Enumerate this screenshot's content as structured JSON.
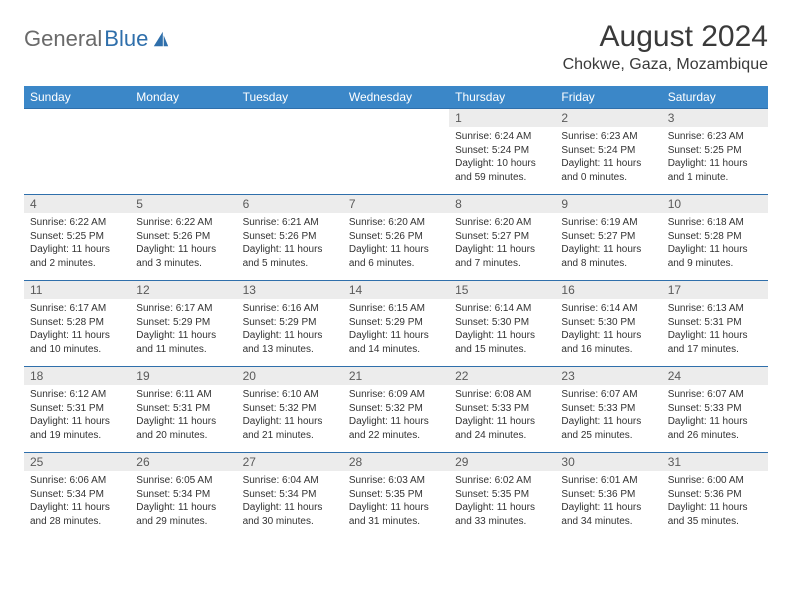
{
  "branding": {
    "logo_text_1": "General",
    "logo_text_2": "Blue",
    "logo_fill": "#2f6fab"
  },
  "header": {
    "month_title": "August 2024",
    "location": "Chokwe, Gaza, Mozambique"
  },
  "colors": {
    "header_bg": "#3b87c8",
    "header_text": "#ffffff",
    "row_border": "#2f6fab",
    "daynum_bg": "#ececec",
    "text": "#333333"
  },
  "days_of_week": [
    "Sunday",
    "Monday",
    "Tuesday",
    "Wednesday",
    "Thursday",
    "Friday",
    "Saturday"
  ],
  "labels": {
    "sunrise": "Sunrise: ",
    "sunset": "Sunset: ",
    "daylight": "Daylight: "
  },
  "weeks": [
    [
      {
        "empty": true
      },
      {
        "empty": true
      },
      {
        "empty": true
      },
      {
        "empty": true
      },
      {
        "day": "1",
        "sunrise": "6:24 AM",
        "sunset": "5:24 PM",
        "daylight": "10 hours and 59 minutes."
      },
      {
        "day": "2",
        "sunrise": "6:23 AM",
        "sunset": "5:24 PM",
        "daylight": "11 hours and 0 minutes."
      },
      {
        "day": "3",
        "sunrise": "6:23 AM",
        "sunset": "5:25 PM",
        "daylight": "11 hours and 1 minute."
      }
    ],
    [
      {
        "day": "4",
        "sunrise": "6:22 AM",
        "sunset": "5:25 PM",
        "daylight": "11 hours and 2 minutes."
      },
      {
        "day": "5",
        "sunrise": "6:22 AM",
        "sunset": "5:26 PM",
        "daylight": "11 hours and 3 minutes."
      },
      {
        "day": "6",
        "sunrise": "6:21 AM",
        "sunset": "5:26 PM",
        "daylight": "11 hours and 5 minutes."
      },
      {
        "day": "7",
        "sunrise": "6:20 AM",
        "sunset": "5:26 PM",
        "daylight": "11 hours and 6 minutes."
      },
      {
        "day": "8",
        "sunrise": "6:20 AM",
        "sunset": "5:27 PM",
        "daylight": "11 hours and 7 minutes."
      },
      {
        "day": "9",
        "sunrise": "6:19 AM",
        "sunset": "5:27 PM",
        "daylight": "11 hours and 8 minutes."
      },
      {
        "day": "10",
        "sunrise": "6:18 AM",
        "sunset": "5:28 PM",
        "daylight": "11 hours and 9 minutes."
      }
    ],
    [
      {
        "day": "11",
        "sunrise": "6:17 AM",
        "sunset": "5:28 PM",
        "daylight": "11 hours and 10 minutes."
      },
      {
        "day": "12",
        "sunrise": "6:17 AM",
        "sunset": "5:29 PM",
        "daylight": "11 hours and 11 minutes."
      },
      {
        "day": "13",
        "sunrise": "6:16 AM",
        "sunset": "5:29 PM",
        "daylight": "11 hours and 13 minutes."
      },
      {
        "day": "14",
        "sunrise": "6:15 AM",
        "sunset": "5:29 PM",
        "daylight": "11 hours and 14 minutes."
      },
      {
        "day": "15",
        "sunrise": "6:14 AM",
        "sunset": "5:30 PM",
        "daylight": "11 hours and 15 minutes."
      },
      {
        "day": "16",
        "sunrise": "6:14 AM",
        "sunset": "5:30 PM",
        "daylight": "11 hours and 16 minutes."
      },
      {
        "day": "17",
        "sunrise": "6:13 AM",
        "sunset": "5:31 PM",
        "daylight": "11 hours and 17 minutes."
      }
    ],
    [
      {
        "day": "18",
        "sunrise": "6:12 AM",
        "sunset": "5:31 PM",
        "daylight": "11 hours and 19 minutes."
      },
      {
        "day": "19",
        "sunrise": "6:11 AM",
        "sunset": "5:31 PM",
        "daylight": "11 hours and 20 minutes."
      },
      {
        "day": "20",
        "sunrise": "6:10 AM",
        "sunset": "5:32 PM",
        "daylight": "11 hours and 21 minutes."
      },
      {
        "day": "21",
        "sunrise": "6:09 AM",
        "sunset": "5:32 PM",
        "daylight": "11 hours and 22 minutes."
      },
      {
        "day": "22",
        "sunrise": "6:08 AM",
        "sunset": "5:33 PM",
        "daylight": "11 hours and 24 minutes."
      },
      {
        "day": "23",
        "sunrise": "6:07 AM",
        "sunset": "5:33 PM",
        "daylight": "11 hours and 25 minutes."
      },
      {
        "day": "24",
        "sunrise": "6:07 AM",
        "sunset": "5:33 PM",
        "daylight": "11 hours and 26 minutes."
      }
    ],
    [
      {
        "day": "25",
        "sunrise": "6:06 AM",
        "sunset": "5:34 PM",
        "daylight": "11 hours and 28 minutes."
      },
      {
        "day": "26",
        "sunrise": "6:05 AM",
        "sunset": "5:34 PM",
        "daylight": "11 hours and 29 minutes."
      },
      {
        "day": "27",
        "sunrise": "6:04 AM",
        "sunset": "5:34 PM",
        "daylight": "11 hours and 30 minutes."
      },
      {
        "day": "28",
        "sunrise": "6:03 AM",
        "sunset": "5:35 PM",
        "daylight": "11 hours and 31 minutes."
      },
      {
        "day": "29",
        "sunrise": "6:02 AM",
        "sunset": "5:35 PM",
        "daylight": "11 hours and 33 minutes."
      },
      {
        "day": "30",
        "sunrise": "6:01 AM",
        "sunset": "5:36 PM",
        "daylight": "11 hours and 34 minutes."
      },
      {
        "day": "31",
        "sunrise": "6:00 AM",
        "sunset": "5:36 PM",
        "daylight": "11 hours and 35 minutes."
      }
    ]
  ]
}
